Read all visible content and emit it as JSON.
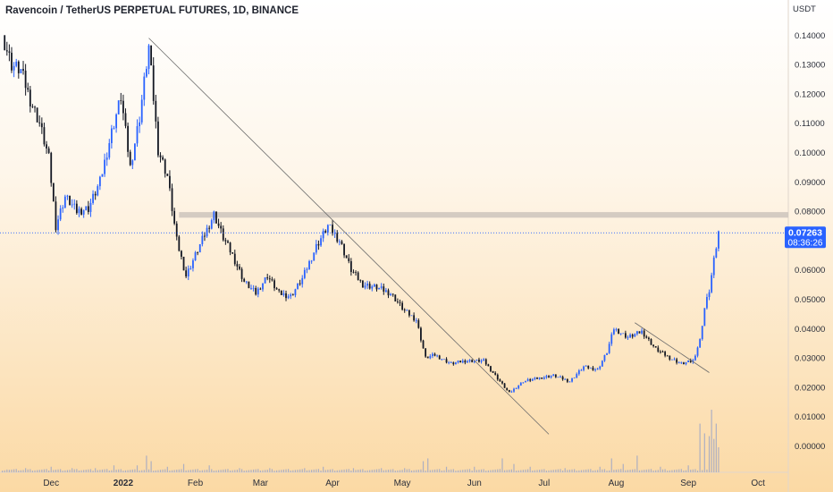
{
  "title": "Ravencoin / TetherUS PERPETUAL FUTURES, 1D, BINANCE",
  "chart_data": {
    "type": "candlestick",
    "title": "Ravencoin / TetherUS PERPETUAL FUTURES, 1D, BINANCE",
    "y_unit": "USDT",
    "ylim": [
      -0.009,
      0.152
    ],
    "y_ticks": [
      "0.14000",
      "0.13000",
      "0.12000",
      "0.11000",
      "0.10000",
      "0.09000",
      "0.08000",
      "0.07000",
      "0.06000",
      "0.05000",
      "0.04000",
      "0.03000",
      "0.02000",
      "0.01000",
      "0.00000"
    ],
    "y_tick_values": [
      0.14,
      0.13,
      0.12,
      0.11,
      0.1,
      0.09,
      0.08,
      0.07,
      0.06,
      0.05,
      0.04,
      0.03,
      0.02,
      0.01,
      0.0
    ],
    "x_ticks": [
      {
        "label": "Dec",
        "date": "2021-12-01"
      },
      {
        "label": "2022",
        "date": "2022-01-01"
      },
      {
        "label": "Feb",
        "date": "2022-02-01"
      },
      {
        "label": "Mar",
        "date": "2022-03-01"
      },
      {
        "label": "Apr",
        "date": "2022-04-01"
      },
      {
        "label": "May",
        "date": "2022-05-01"
      },
      {
        "label": "Jun",
        "date": "2022-06-01"
      },
      {
        "label": "Jul",
        "date": "2022-07-01"
      },
      {
        "label": "Aug",
        "date": "2022-08-01"
      },
      {
        "label": "Sep",
        "date": "2022-09-01"
      },
      {
        "label": "Oct",
        "date": "2022-10-01"
      }
    ],
    "xlim": [
      "2021-11-09",
      "2022-10-14"
    ],
    "last_price": "0.07263",
    "countdown": "08:36:26",
    "price_path": [
      [
        "2021-11-10",
        0.14
      ],
      [
        "2021-11-14",
        0.13
      ],
      [
        "2021-11-18",
        0.128
      ],
      [
        "2021-11-22",
        0.118
      ],
      [
        "2021-11-26",
        0.11
      ],
      [
        "2021-11-30",
        0.098
      ],
      [
        "2021-12-03",
        0.075
      ],
      [
        "2021-12-07",
        0.085
      ],
      [
        "2021-12-12",
        0.08
      ],
      [
        "2021-12-17",
        0.081
      ],
      [
        "2021-12-22",
        0.09
      ],
      [
        "2021-12-27",
        0.107
      ],
      [
        "2021-12-31",
        0.119
      ],
      [
        "2022-01-04",
        0.095
      ],
      [
        "2022-01-08",
        0.112
      ],
      [
        "2022-01-12",
        0.136
      ],
      [
        "2022-01-16",
        0.101
      ],
      [
        "2022-01-20",
        0.092
      ],
      [
        "2022-01-24",
        0.07
      ],
      [
        "2022-01-28",
        0.058
      ],
      [
        "2022-02-01",
        0.065
      ],
      [
        "2022-02-05",
        0.072
      ],
      [
        "2022-02-09",
        0.079
      ],
      [
        "2022-02-13",
        0.071
      ],
      [
        "2022-02-17",
        0.065
      ],
      [
        "2022-02-22",
        0.056
      ],
      [
        "2022-02-27",
        0.052
      ],
      [
        "2022-03-04",
        0.058
      ],
      [
        "2022-03-09",
        0.052
      ],
      [
        "2022-03-14",
        0.051
      ],
      [
        "2022-03-19",
        0.057
      ],
      [
        "2022-03-25",
        0.068
      ],
      [
        "2022-03-30",
        0.075
      ],
      [
        "2022-04-04",
        0.07
      ],
      [
        "2022-04-09",
        0.06
      ],
      [
        "2022-04-14",
        0.055
      ],
      [
        "2022-04-20",
        0.054
      ],
      [
        "2022-04-26",
        0.052
      ],
      [
        "2022-05-02",
        0.046
      ],
      [
        "2022-05-07",
        0.043
      ],
      [
        "2022-05-11",
        0.03
      ],
      [
        "2022-05-15",
        0.031
      ],
      [
        "2022-05-22",
        0.028
      ],
      [
        "2022-05-28",
        0.029
      ],
      [
        "2022-06-05",
        0.029
      ],
      [
        "2022-06-11",
        0.023
      ],
      [
        "2022-06-16",
        0.018
      ],
      [
        "2022-06-22",
        0.022
      ],
      [
        "2022-06-28",
        0.023
      ],
      [
        "2022-07-05",
        0.024
      ],
      [
        "2022-07-12",
        0.022
      ],
      [
        "2022-07-18",
        0.027
      ],
      [
        "2022-07-24",
        0.026
      ],
      [
        "2022-07-28",
        0.032
      ],
      [
        "2022-07-31",
        0.04
      ],
      [
        "2022-08-06",
        0.037
      ],
      [
        "2022-08-12",
        0.039
      ],
      [
        "2022-08-18",
        0.033
      ],
      [
        "2022-08-24",
        0.03
      ],
      [
        "2022-08-29",
        0.028
      ],
      [
        "2022-09-03",
        0.029
      ],
      [
        "2022-09-06",
        0.036
      ],
      [
        "2022-09-08",
        0.047
      ],
      [
        "2022-09-10",
        0.053
      ],
      [
        "2022-09-12",
        0.063
      ],
      [
        "2022-09-14",
        0.0726
      ]
    ],
    "volume_bars": [
      [
        "2021-11-12",
        2
      ],
      [
        "2021-11-20",
        3
      ],
      [
        "2021-12-01",
        4
      ],
      [
        "2021-12-10",
        3
      ],
      [
        "2021-12-20",
        3
      ],
      [
        "2021-12-28",
        5
      ],
      [
        "2022-01-07",
        5
      ],
      [
        "2022-01-11",
        12
      ],
      [
        "2022-01-13",
        8
      ],
      [
        "2022-01-20",
        4
      ],
      [
        "2022-01-27",
        6
      ],
      [
        "2022-02-07",
        5
      ],
      [
        "2022-02-20",
        3
      ],
      [
        "2022-03-05",
        3
      ],
      [
        "2022-03-20",
        3
      ],
      [
        "2022-03-28",
        4
      ],
      [
        "2022-04-10",
        3
      ],
      [
        "2022-04-22",
        3
      ],
      [
        "2022-05-02",
        3
      ],
      [
        "2022-05-10",
        8
      ],
      [
        "2022-05-12",
        10
      ],
      [
        "2022-05-20",
        4
      ],
      [
        "2022-06-01",
        4
      ],
      [
        "2022-06-13",
        10
      ],
      [
        "2022-06-18",
        6
      ],
      [
        "2022-06-25",
        4
      ],
      [
        "2022-07-10",
        3
      ],
      [
        "2022-07-25",
        4
      ],
      [
        "2022-07-30",
        10
      ],
      [
        "2022-08-04",
        6
      ],
      [
        "2022-08-10",
        12
      ],
      [
        "2022-08-20",
        4
      ],
      [
        "2022-09-01",
        5
      ],
      [
        "2022-09-06",
        35
      ],
      [
        "2022-09-08",
        28
      ],
      [
        "2022-09-10",
        26
      ],
      [
        "2022-09-11",
        45
      ],
      [
        "2022-09-12",
        24
      ],
      [
        "2022-09-13",
        35
      ],
      [
        "2022-09-14",
        18
      ]
    ],
    "annotations": [
      {
        "type": "trendline",
        "from": [
          "2022-01-12",
          0.139
        ],
        "to": [
          "2022-07-03",
          0.004
        ]
      },
      {
        "type": "trendline",
        "from": [
          "2022-08-09",
          0.042
        ],
        "to": [
          "2022-09-10",
          0.025
        ]
      },
      {
        "type": "horizontal_zone",
        "from_date": "2022-01-25",
        "to_date": "2022-10-14",
        "y_low": 0.0778,
        "y_high": 0.0797
      },
      {
        "type": "last_price_line",
        "y": 0.07263
      }
    ],
    "colors": {
      "up": "#2962ff",
      "down": "#131722",
      "background_top": "#ffffff",
      "background_bottom": "#fbd9a4",
      "price_label_bg": "#2962ff",
      "zone": "#cfc6bf"
    }
  }
}
